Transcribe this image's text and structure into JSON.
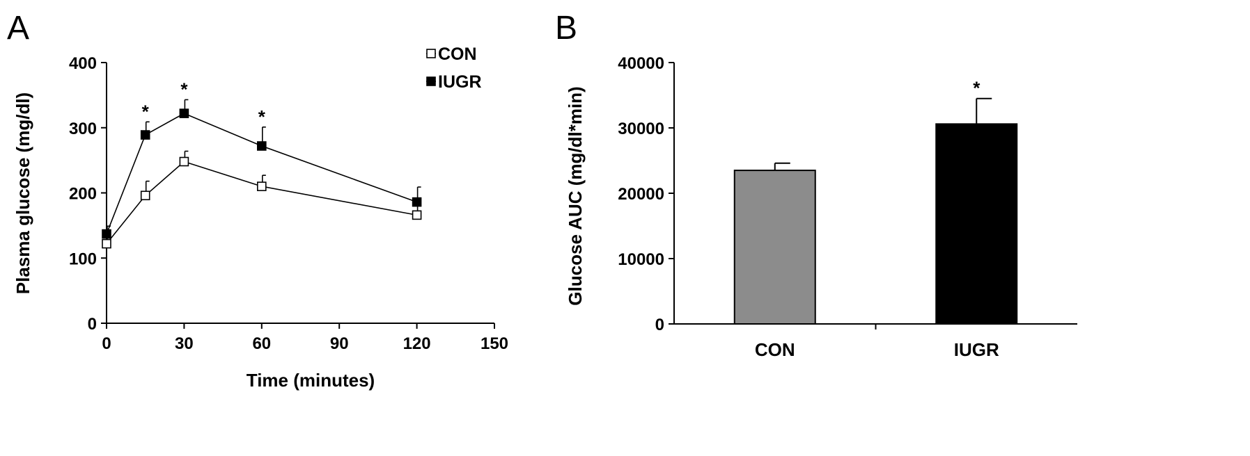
{
  "chart_data": [
    {
      "panel": "A",
      "type": "line",
      "xlabel": "Time (minutes)",
      "ylabel": "Plasma glucose (mg/dl)",
      "xlim": [
        0,
        150
      ],
      "ylim": [
        0,
        400
      ],
      "xticks": [
        0,
        30,
        60,
        90,
        120,
        150
      ],
      "yticks": [
        0,
        100,
        200,
        300,
        400
      ],
      "legend_position": "top-right",
      "grid": false,
      "series": [
        {
          "name": "CON",
          "marker": "open-square",
          "color": "#000000",
          "fill": "#ffffff",
          "x": [
            0,
            15,
            30,
            60,
            120
          ],
          "y": [
            122,
            196,
            248,
            210,
            166
          ],
          "error": [
            17,
            22,
            16,
            17,
            18
          ],
          "significance": [
            "",
            "",
            "",
            "",
            ""
          ]
        },
        {
          "name": "IUGR",
          "marker": "filled-square",
          "color": "#000000",
          "fill": "#000000",
          "x": [
            0,
            15,
            30,
            60,
            120
          ],
          "y": [
            137,
            289,
            322,
            272,
            186
          ],
          "error": [
            12,
            20,
            21,
            29,
            23
          ],
          "significance": [
            "",
            "*",
            "*",
            "*",
            ""
          ]
        }
      ]
    },
    {
      "panel": "B",
      "type": "bar",
      "xlabel": "",
      "ylabel": "Glucose AUC (mg/dl*min)",
      "ylim": [
        0,
        40000
      ],
      "yticks": [
        0,
        10000,
        20000,
        30000,
        40000
      ],
      "grid": false,
      "categories": [
        "CON",
        "IUGR"
      ],
      "values": [
        23500,
        30600
      ],
      "error": [
        1100,
        3900
      ],
      "colors": [
        "#8c8c8c",
        "#000000"
      ],
      "significance": [
        "",
        "*"
      ]
    }
  ]
}
